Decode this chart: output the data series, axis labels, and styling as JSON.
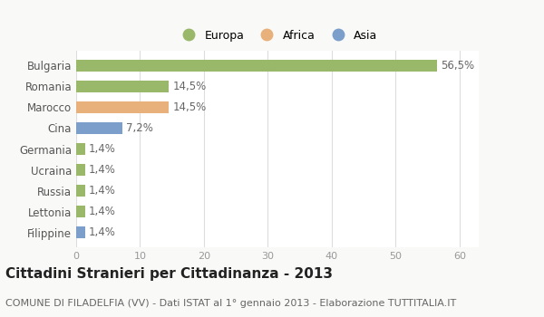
{
  "categories": [
    "Filippine",
    "Lettonia",
    "Russia",
    "Ucraina",
    "Germania",
    "Cina",
    "Marocco",
    "Romania",
    "Bulgaria"
  ],
  "values": [
    1.4,
    1.4,
    1.4,
    1.4,
    1.4,
    7.2,
    14.5,
    14.5,
    56.5
  ],
  "labels": [
    "1,4%",
    "1,4%",
    "1,4%",
    "1,4%",
    "1,4%",
    "7,2%",
    "14,5%",
    "14,5%",
    "56,5%"
  ],
  "colors": [
    "#7b9fca",
    "#9ab86a",
    "#9ab86a",
    "#9ab86a",
    "#9ab86a",
    "#7b9fca",
    "#e8b07a",
    "#9ab86a",
    "#9ab86a"
  ],
  "legend_labels": [
    "Europa",
    "Africa",
    "Asia"
  ],
  "legend_colors": [
    "#9ab86a",
    "#e8b07a",
    "#7b9fca"
  ],
  "xlim": [
    0,
    63
  ],
  "xticks": [
    0,
    10,
    20,
    30,
    40,
    50,
    60
  ],
  "title": "Cittadini Stranieri per Cittadinanza - 2013",
  "subtitle": "COMUNE DI FILADELFIA (VV) - Dati ISTAT al 1° gennaio 2013 - Elaborazione TUTTITALIA.IT",
  "bg_color": "#f9f9f7",
  "plot_bg_color": "#ffffff",
  "grid_color": "#dddddd",
  "bar_height": 0.55,
  "label_fontsize": 8.5,
  "tick_fontsize": 8,
  "title_fontsize": 11,
  "subtitle_fontsize": 8
}
